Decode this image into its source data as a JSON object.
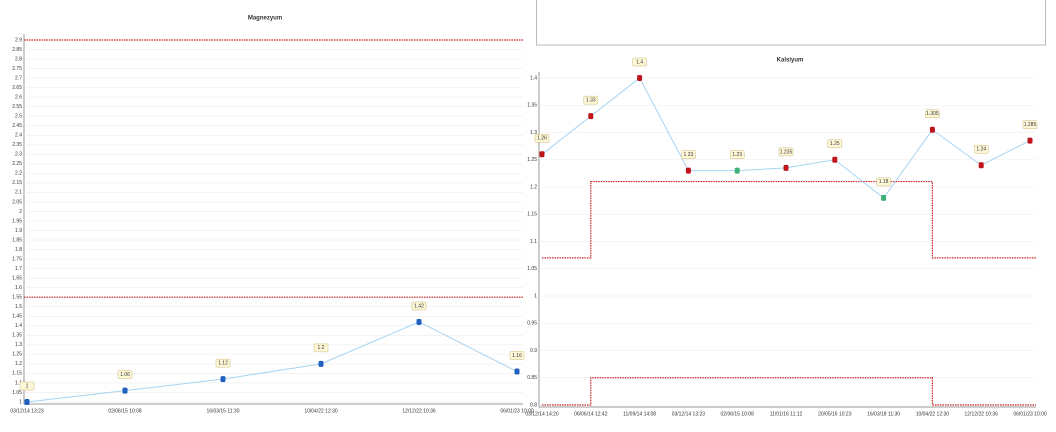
{
  "chart_data": [
    {
      "type": "line",
      "title": "Magnezyum",
      "categories": [
        "03/12/14 13:23",
        "02/06/15 10:08",
        "16/03/15 11:30",
        "10/04/22 12:30",
        "12/12/22 10:36",
        "06/01/23 10:00"
      ],
      "ylim": [
        1.0,
        2.9
      ],
      "yticks": [
        1.0,
        1.05,
        1.1,
        1.15,
        1.2,
        1.25,
        1.3,
        1.35,
        1.4,
        1.45,
        1.5,
        1.55,
        1.6,
        1.65,
        1.7,
        1.75,
        1.8,
        1.85,
        1.9,
        1.95,
        2,
        2.05,
        2.1,
        2.15,
        2.2,
        2.25,
        2.3,
        2.35,
        2.4,
        2.45,
        2.5,
        2.55,
        2.6,
        2.65,
        2.7,
        2.75,
        2.8,
        2.85,
        2.9
      ],
      "grid": true,
      "series": [
        {
          "color": "#cc2222",
          "dash": true,
          "values": [
            2.9,
            2.9,
            2.9,
            2.9,
            2.9,
            2.9
          ]
        },
        {
          "color": "#cc2222",
          "dash": true,
          "values": [
            1.55,
            1.55,
            1.55,
            1.55,
            1.55,
            1.55
          ]
        },
        {
          "color": "#a8d4f2",
          "data_labels": true,
          "marker_colors": [
            "#1f5fbf",
            "#1f5fbf",
            "#1f5fbf",
            "#1f5fbf",
            "#1f5fbf",
            "#1f5fbf"
          ],
          "values": [
            1.0,
            1.06,
            1.12,
            1.2,
            1.42,
            1.16
          ]
        }
      ]
    },
    {
      "type": "line",
      "title": "Kalsiyum",
      "categories": [
        "03/12/14 14:20",
        "06/06/14 12:42",
        "11/09/14 14:08",
        "03/12/14 13:23",
        "02/06/15 10:08",
        "11/01/16 11:12",
        "20/05/16 10:23",
        "16/03/18 11:30",
        "10/04/22 12:30",
        "12/12/22 10:36",
        "06/01/23 10:00"
      ],
      "ylim": [
        0.8,
        1.4
      ],
      "yticks": [
        0.8,
        0.85,
        0.9,
        0.95,
        1,
        1.05,
        1.1,
        1.15,
        1.2,
        1.25,
        1.3,
        1.35,
        1.4
      ],
      "grid": true,
      "series": [
        {
          "color": "#cc2222",
          "dash": true,
          "step": "post",
          "values": [
            1.07,
            1.21,
            1.21,
            1.21,
            1.21,
            1.21,
            1.21,
            1.21,
            1.07,
            1.07,
            1.07
          ]
        },
        {
          "color": "#cc2222",
          "dash": true,
          "step": "post",
          "values": [
            0.8,
            0.85,
            0.85,
            0.85,
            0.85,
            0.85,
            0.85,
            0.85,
            0.8,
            0.8,
            0.8
          ]
        },
        {
          "color": "#a8d4f2",
          "data_labels": true,
          "marker_colors": [
            "#c0141c",
            "#c0141c",
            "#c0141c",
            "#c0141c",
            "#3fb07a",
            "#c0141c",
            "#c0141c",
            "#3fb07a",
            "#c0141c",
            "#c0141c",
            "#c0141c"
          ],
          "values": [
            1.26,
            1.33,
            1.4,
            1.23,
            1.23,
            1.235,
            1.25,
            1.18,
            1.305,
            1.24,
            1.285
          ]
        }
      ]
    }
  ]
}
